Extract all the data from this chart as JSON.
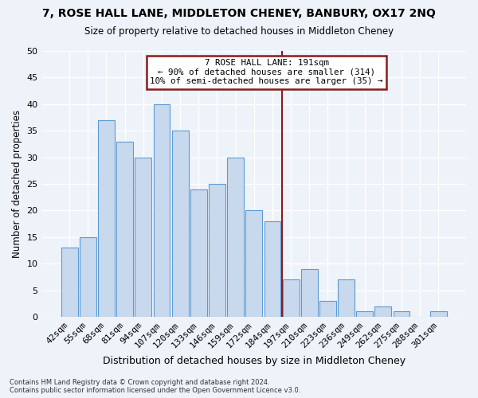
{
  "title": "7, ROSE HALL LANE, MIDDLETON CHENEY, BANBURY, OX17 2NQ",
  "subtitle": "Size of property relative to detached houses in Middleton Cheney",
  "xlabel": "Distribution of detached houses by size in Middleton Cheney",
  "ylabel": "Number of detached properties",
  "bar_labels": [
    "42sqm",
    "55sqm",
    "68sqm",
    "81sqm",
    "94sqm",
    "107sqm",
    "120sqm",
    "133sqm",
    "146sqm",
    "159sqm",
    "172sqm",
    "184sqm",
    "197sqm",
    "210sqm",
    "223sqm",
    "236sqm",
    "249sqm",
    "262sqm",
    "275sqm",
    "288sqm",
    "301sqm"
  ],
  "bar_values": [
    13,
    15,
    37,
    33,
    30,
    40,
    35,
    24,
    25,
    30,
    20,
    18,
    7,
    9,
    3,
    7,
    1,
    2,
    1,
    0,
    1
  ],
  "bar_color": "#c8d9ed",
  "bar_edge_color": "#5b9bd5",
  "annotation_title": "7 ROSE HALL LANE: 191sqm",
  "annotation_line1": "← 90% of detached houses are smaller (314)",
  "annotation_line2": "10% of semi-detached houses are larger (35) →",
  "vline_x": 11.5,
  "vline_color": "#8b1a1a",
  "annotation_box_edge": "#8b1a1a",
  "background_color": "#eef2f9",
  "grid_color": "#ffffff",
  "footer": "Contains HM Land Registry data © Crown copyright and database right 2024.\nContains public sector information licensed under the Open Government Licence v3.0.",
  "ylim": [
    0,
    50
  ],
  "yticks": [
    0,
    5,
    10,
    15,
    20,
    25,
    30,
    35,
    40,
    45,
    50
  ]
}
